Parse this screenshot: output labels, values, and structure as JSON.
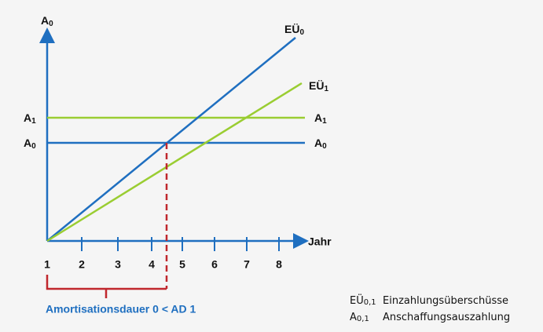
{
  "y_axis_label": {
    "main": "A",
    "sub": "0"
  },
  "x_axis_label": "Jahr",
  "x_ticks": [
    "1",
    "2",
    "3",
    "4",
    "5",
    "6",
    "7",
    "8"
  ],
  "lines": [
    {
      "main": "EÜ",
      "sub": "0"
    },
    {
      "main": "EÜ",
      "sub": "1"
    },
    {
      "main": "A",
      "sub": "1"
    },
    {
      "main": "A",
      "sub": "0"
    }
  ],
  "bracket_label": "Amortisationsdauer 0 < AD 1",
  "legend": [
    {
      "main": "EÜ",
      "sub": "0,1",
      "text": "Einzahlungsüberschüsse"
    },
    {
      "main": "A",
      "sub": "0,1",
      "text": "Anschaffungsauszahlung"
    }
  ]
}
